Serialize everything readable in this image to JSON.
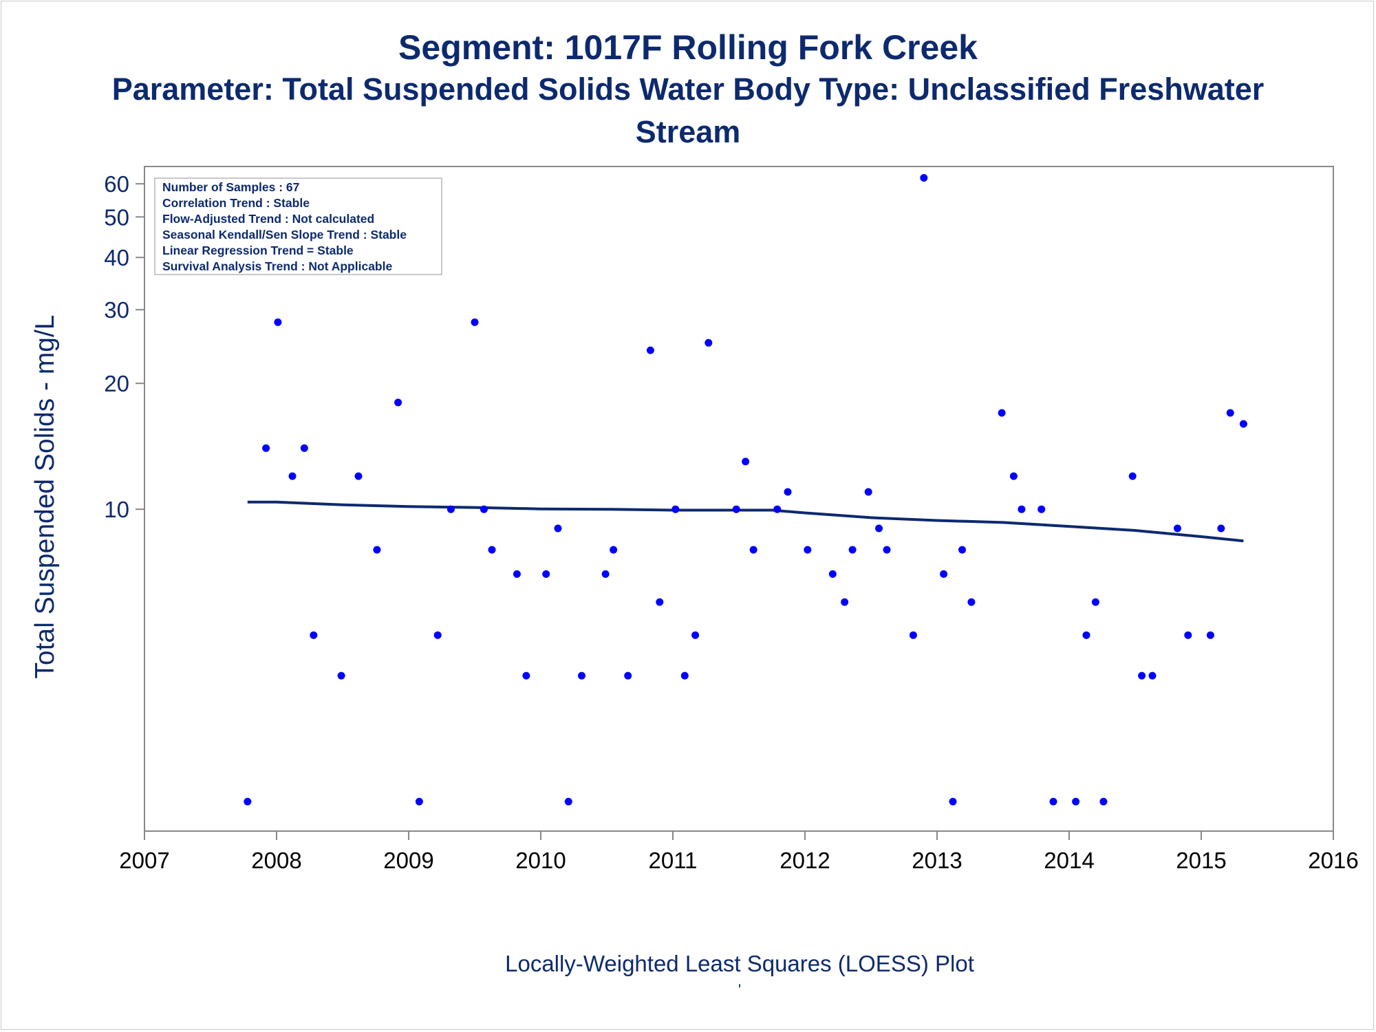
{
  "title": "Segment: 1017F  Rolling Fork Creek",
  "subtitle": "Parameter: Total Suspended Solids   Water Body Type: Unclassified Freshwater",
  "subtitle2": "Stream",
  "colors": {
    "points": "#0000ff",
    "line": "#0d2a6e",
    "text": "#0d2a6e",
    "axis": "#888888"
  },
  "info_box": {
    "lines": [
      "Number of Samples : 67",
      "Correlation Trend : Stable",
      "Flow-Adjusted Trend : Not calculated",
      "Seasonal Kendall/Sen Slope Trend : Stable",
      "Linear Regression Trend = Stable",
      "Survival Analysis Trend : Not Applicable"
    ]
  },
  "chart_data": {
    "type": "scatter",
    "xlabel": "Locally-Weighted Least Squares (LOESS) Plot",
    "footnote": "'",
    "ylabel": "Total Suspended Solids - mg/L",
    "xlim": [
      2007,
      2016
    ],
    "x_ticks": [
      2007,
      2008,
      2009,
      2010,
      2011,
      2012,
      2013,
      2014,
      2015,
      2016
    ],
    "y_scale": "log",
    "y_ticks": [
      10,
      20,
      30,
      40,
      50,
      60
    ],
    "ylim": [
      1.7,
      66
    ],
    "grid": false,
    "points": [
      [
        2007.78,
        2
      ],
      [
        2007.92,
        14
      ],
      [
        2008.01,
        28
      ],
      [
        2008.12,
        12
      ],
      [
        2008.21,
        14
      ],
      [
        2008.28,
        5
      ],
      [
        2008.49,
        4
      ],
      [
        2008.62,
        12
      ],
      [
        2008.76,
        8
      ],
      [
        2008.92,
        18
      ],
      [
        2009.08,
        2
      ],
      [
        2009.22,
        5
      ],
      [
        2009.32,
        10
      ],
      [
        2009.5,
        28
      ],
      [
        2009.57,
        10
      ],
      [
        2009.63,
        8
      ],
      [
        2009.82,
        7
      ],
      [
        2009.89,
        4
      ],
      [
        2010.04,
        7
      ],
      [
        2010.13,
        9
      ],
      [
        2010.21,
        2
      ],
      [
        2010.31,
        4
      ],
      [
        2010.49,
        7
      ],
      [
        2010.55,
        8
      ],
      [
        2010.66,
        4
      ],
      [
        2010.83,
        24
      ],
      [
        2010.9,
        6
      ],
      [
        2011.02,
        10
      ],
      [
        2011.09,
        4
      ],
      [
        2011.17,
        5
      ],
      [
        2011.27,
        25
      ],
      [
        2011.48,
        10
      ],
      [
        2011.55,
        13
      ],
      [
        2011.61,
        8
      ],
      [
        2011.79,
        10
      ],
      [
        2011.87,
        11
      ],
      [
        2012.02,
        8
      ],
      [
        2012.21,
        7
      ],
      [
        2012.3,
        6
      ],
      [
        2012.36,
        8
      ],
      [
        2012.48,
        11
      ],
      [
        2012.56,
        9
      ],
      [
        2012.62,
        8
      ],
      [
        2012.82,
        5
      ],
      [
        2012.9,
        62
      ],
      [
        2013.05,
        7
      ],
      [
        2013.12,
        2
      ],
      [
        2013.19,
        8
      ],
      [
        2013.26,
        6
      ],
      [
        2013.49,
        17
      ],
      [
        2013.58,
        12
      ],
      [
        2013.64,
        10
      ],
      [
        2013.79,
        10
      ],
      [
        2013.88,
        2
      ],
      [
        2014.05,
        2
      ],
      [
        2014.13,
        5
      ],
      [
        2014.2,
        6
      ],
      [
        2014.26,
        2
      ],
      [
        2014.48,
        12
      ],
      [
        2014.55,
        4
      ],
      [
        2014.63,
        4
      ],
      [
        2014.82,
        9
      ],
      [
        2014.9,
        5
      ],
      [
        2015.07,
        5
      ],
      [
        2015.15,
        9
      ],
      [
        2015.22,
        17
      ],
      [
        2015.32,
        16
      ]
    ],
    "loess": [
      [
        2007.78,
        10.4
      ],
      [
        2008.0,
        10.4
      ],
      [
        2008.5,
        10.25
      ],
      [
        2009.0,
        10.15
      ],
      [
        2009.5,
        10.1
      ],
      [
        2010.0,
        10.02
      ],
      [
        2010.5,
        10.0
      ],
      [
        2011.0,
        9.95
      ],
      [
        2011.5,
        9.95
      ],
      [
        2011.75,
        9.95
      ],
      [
        2012.0,
        9.8
      ],
      [
        2012.5,
        9.55
      ],
      [
        2013.0,
        9.4
      ],
      [
        2013.5,
        9.3
      ],
      [
        2014.0,
        9.1
      ],
      [
        2014.5,
        8.9
      ],
      [
        2015.0,
        8.6
      ],
      [
        2015.32,
        8.4
      ]
    ]
  }
}
